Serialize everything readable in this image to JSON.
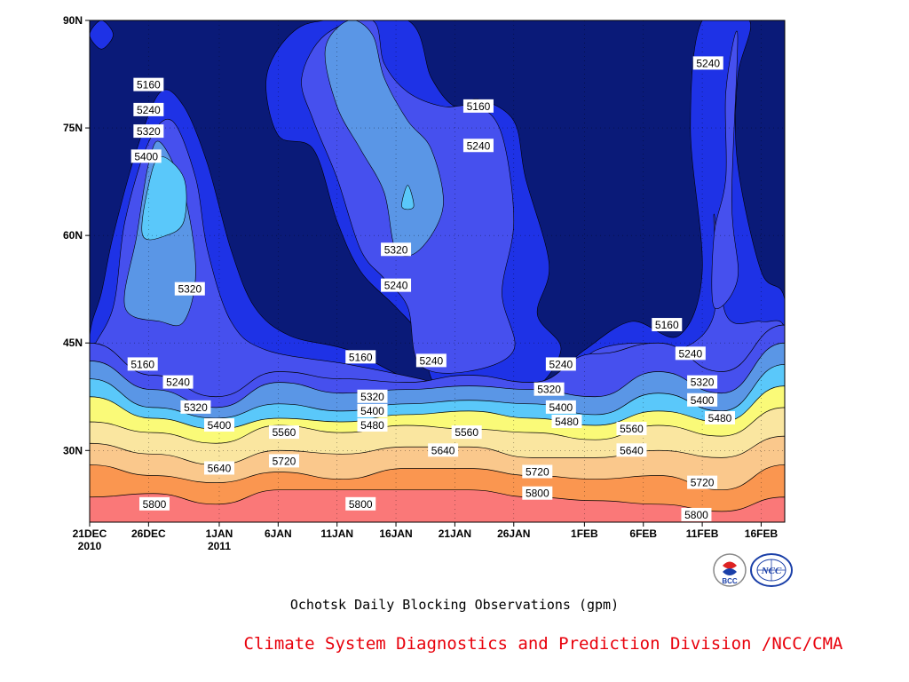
{
  "chart_data": {
    "type": "heatmap",
    "subtype": "filled-contour time-latitude (Hovmoller) diagram",
    "title": "Ochotsk Daily Blocking Observations (gpm)",
    "credit": "Climate System Diagnostics and Prediction Division /NCC/CMA",
    "x_ticks": [
      {
        "label": "21DEC",
        "sub": "2010",
        "day": 0
      },
      {
        "label": "26DEC",
        "sub": "",
        "day": 5
      },
      {
        "label": "1JAN",
        "sub": "2011",
        "day": 11
      },
      {
        "label": "6JAN",
        "sub": "",
        "day": 16
      },
      {
        "label": "11JAN",
        "sub": "",
        "day": 21
      },
      {
        "label": "16JAN",
        "sub": "",
        "day": 26
      },
      {
        "label": "21JAN",
        "sub": "",
        "day": 31
      },
      {
        "label": "26JAN",
        "sub": "",
        "day": 36
      },
      {
        "label": "1FEB",
        "sub": "",
        "day": 42
      },
      {
        "label": "6FEB",
        "sub": "",
        "day": 47
      },
      {
        "label": "11FEB",
        "sub": "",
        "day": 52
      },
      {
        "label": "16FEB",
        "sub": "",
        "day": 57
      }
    ],
    "y_ticks": [
      {
        "label": "30N",
        "lat": 30
      },
      {
        "label": "45N",
        "lat": 45
      },
      {
        "label": "60N",
        "lat": 60
      },
      {
        "label": "75N",
        "lat": 75
      },
      {
        "label": "90N",
        "lat": 90
      }
    ],
    "x_range_days": [
      0,
      59
    ],
    "y_range_lat": [
      20,
      90
    ],
    "grid": "dotted",
    "contour_levels": [
      5160,
      5240,
      5320,
      5400,
      5480,
      5560,
      5640,
      5720,
      5800
    ],
    "fill_colors": {
      "lt5160": "#0a1a78",
      "5160": "#1e32e6",
      "5240": "#4650ee",
      "5320": "#5a96e6",
      "5400": "#5ac8fa",
      "5480": "#fafa78",
      "5560": "#fae6a0",
      "5640": "#fac88c",
      "5720": "#fa9650",
      "5800": "#fa7878"
    },
    "lower_bands": [
      {
        "level": 5800,
        "lat": [
          23.5,
          24.0,
          22.5,
          24.5,
          24.5,
          24.5,
          24.5,
          23.5,
          23.0,
          22.5,
          21.5,
          23.5
        ]
      },
      {
        "level": 5720,
        "lat": [
          28.0,
          26.5,
          25.5,
          27.0,
          26.0,
          27.5,
          27.5,
          26.5,
          26.0,
          26.5,
          24.5,
          28.0
        ]
      },
      {
        "level": 5640,
        "lat": [
          31.0,
          29.5,
          28.0,
          30.0,
          29.5,
          30.5,
          30.5,
          29.0,
          29.0,
          30.0,
          29.0,
          32.0
        ]
      },
      {
        "level": 5560,
        "lat": [
          34.0,
          32.5,
          31.0,
          33.5,
          32.5,
          33.5,
          33.0,
          32.5,
          31.5,
          33.5,
          32.0,
          36.0
        ]
      },
      {
        "level": 5480,
        "lat": [
          37.5,
          34.5,
          33.0,
          34.5,
          34.0,
          35.0,
          35.5,
          34.5,
          33.5,
          35.5,
          34.0,
          39.0
        ]
      },
      {
        "level": 5400,
        "lat": [
          40.0,
          36.0,
          34.5,
          36.5,
          35.5,
          36.5,
          37.0,
          36.5,
          35.0,
          38.0,
          35.5,
          42.0
        ]
      },
      {
        "level": 5320,
        "lat": [
          42.5,
          38.5,
          36.0,
          39.5,
          38.0,
          38.5,
          39.0,
          38.5,
          37.5,
          41.0,
          38.0,
          45.0
        ]
      },
      {
        "level": 5240,
        "lat": [
          45.0,
          40.5,
          37.5,
          41.0,
          40.0,
          39.5,
          40.5,
          39.5,
          43.5,
          45.0,
          41.0,
          47.5
        ]
      }
    ],
    "labels": [
      {
        "text": "5160",
        "day": 5.0,
        "lat": 81.0
      },
      {
        "text": "5240",
        "day": 5.0,
        "lat": 77.5
      },
      {
        "text": "5320",
        "day": 5.0,
        "lat": 74.5
      },
      {
        "text": "5400",
        "day": 4.8,
        "lat": 71.0
      },
      {
        "text": "5320",
        "day": 8.5,
        "lat": 52.5
      },
      {
        "text": "5160",
        "day": 4.5,
        "lat": 42.0
      },
      {
        "text": "5240",
        "day": 7.5,
        "lat": 39.5
      },
      {
        "text": "5320",
        "day": 9.0,
        "lat": 36.0
      },
      {
        "text": "5400",
        "day": 11.0,
        "lat": 33.5
      },
      {
        "text": "5640",
        "day": 11.0,
        "lat": 27.5
      },
      {
        "text": "5800",
        "day": 5.5,
        "lat": 22.5
      },
      {
        "text": "5560",
        "day": 16.5,
        "lat": 32.5
      },
      {
        "text": "5720",
        "day": 16.5,
        "lat": 28.5
      },
      {
        "text": "5160",
        "day": 23.0,
        "lat": 43.0
      },
      {
        "text": "5320",
        "day": 24.0,
        "lat": 37.5
      },
      {
        "text": "5400",
        "day": 24.0,
        "lat": 35.5
      },
      {
        "text": "5480",
        "day": 24.0,
        "lat": 33.5
      },
      {
        "text": "5800",
        "day": 23.0,
        "lat": 22.5
      },
      {
        "text": "5320",
        "day": 26.0,
        "lat": 58.0
      },
      {
        "text": "5240",
        "day": 26.0,
        "lat": 53.0
      },
      {
        "text": "5240",
        "day": 29.0,
        "lat": 42.5
      },
      {
        "text": "5640",
        "day": 30.0,
        "lat": 30.0
      },
      {
        "text": "5560",
        "day": 32.0,
        "lat": 32.5
      },
      {
        "text": "5160",
        "day": 33.0,
        "lat": 78.0
      },
      {
        "text": "5240",
        "day": 33.0,
        "lat": 72.5
      },
      {
        "text": "5720",
        "day": 38.0,
        "lat": 27.0
      },
      {
        "text": "5800",
        "day": 38.0,
        "lat": 24.0
      },
      {
        "text": "5240",
        "day": 40.0,
        "lat": 42.0
      },
      {
        "text": "5320",
        "day": 39.0,
        "lat": 38.5
      },
      {
        "text": "5400",
        "day": 40.0,
        "lat": 36.0
      },
      {
        "text": "5480",
        "day": 40.5,
        "lat": 34.0
      },
      {
        "text": "5560",
        "day": 46.0,
        "lat": 33.0
      },
      {
        "text": "5640",
        "day": 46.0,
        "lat": 30.0
      },
      {
        "text": "5160",
        "day": 49.0,
        "lat": 47.5
      },
      {
        "text": "5240",
        "day": 51.0,
        "lat": 43.5
      },
      {
        "text": "5320",
        "day": 52.0,
        "lat": 39.5
      },
      {
        "text": "5400",
        "day": 52.0,
        "lat": 37.0
      },
      {
        "text": "5480",
        "day": 53.5,
        "lat": 34.5
      },
      {
        "text": "5720",
        "day": 52.0,
        "lat": 25.5
      },
      {
        "text": "5800",
        "day": 51.5,
        "lat": 21.0
      },
      {
        "text": "5240",
        "day": 52.5,
        "lat": 84.0
      }
    ]
  },
  "caption": "Ochotsk Daily Blocking Observations (gpm)",
  "credit": "Climate System Diagnostics and Prediction Division /NCC/CMA",
  "logos": {
    "bcc_text": "BCC",
    "ncc_text": "NCC"
  }
}
